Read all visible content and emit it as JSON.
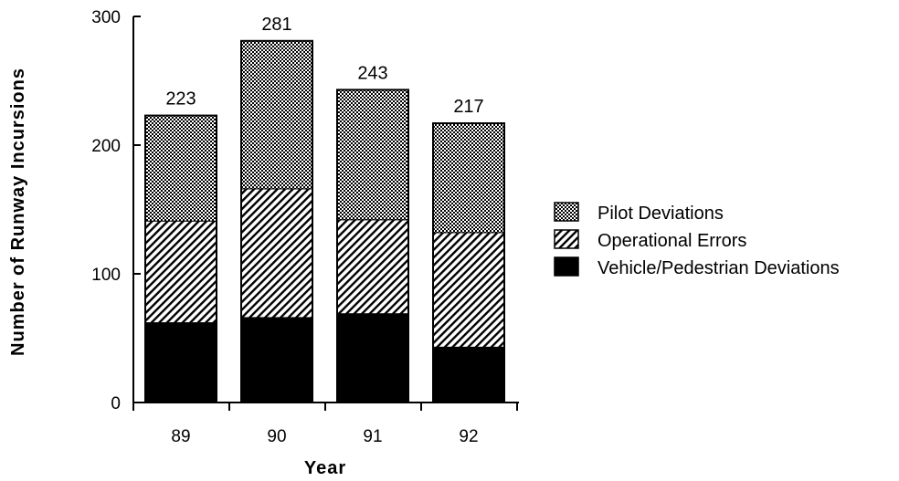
{
  "chart_data": {
    "type": "bar",
    "stacked": true,
    "title": "",
    "xlabel": "Year",
    "ylabel": "Number of Runway Incursions",
    "ylim": [
      0,
      300
    ],
    "yticks": [
      0,
      100,
      200,
      300
    ],
    "categories": [
      "89",
      "90",
      "91",
      "92"
    ],
    "totals": [
      223,
      281,
      243,
      217
    ],
    "series": [
      {
        "name": "Vehicle/Pedestrian Deviations",
        "values": [
          62,
          66,
          69,
          43
        ],
        "fill": "solid",
        "color": "#000000"
      },
      {
        "name": "Operational Errors",
        "values": [
          79,
          100,
          73,
          89
        ],
        "fill": "diagonal-hatch",
        "color": "#000000"
      },
      {
        "name": "Pilot Deviations",
        "values": [
          82,
          115,
          101,
          85
        ],
        "fill": "dotted",
        "color": "#000000"
      }
    ],
    "legend_order": [
      "Pilot Deviations",
      "Operational Errors",
      "Vehicle/Pedestrian Deviations"
    ],
    "legend_position": "right",
    "grid": false
  }
}
